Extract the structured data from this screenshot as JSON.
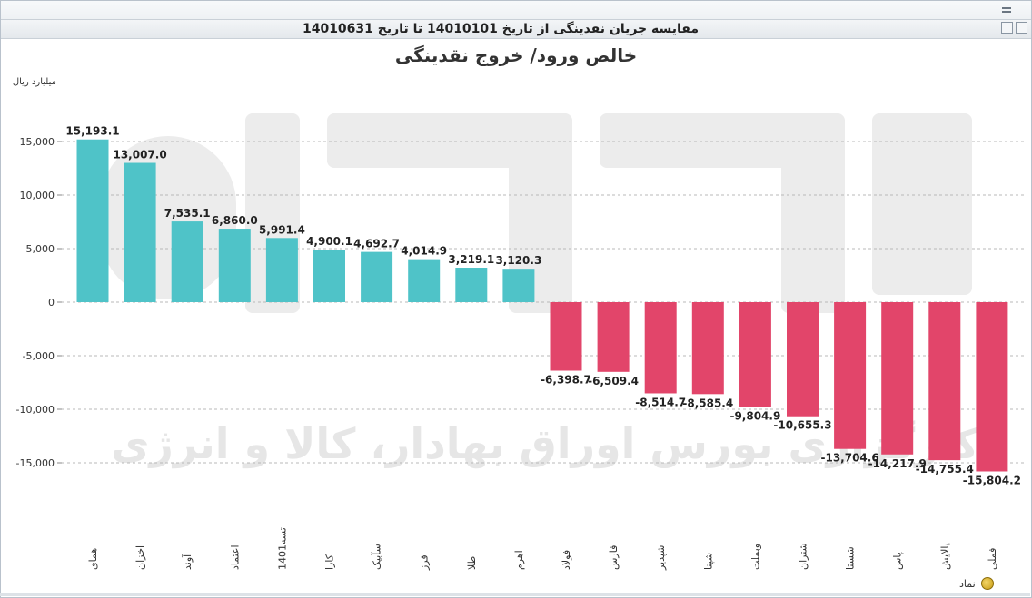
{
  "window": {
    "title": "مقایسه جریان نقدینگی از تاریخ 14010101 تا تاریخ 14010631"
  },
  "colors": {
    "positive": "#4fc3c8",
    "negative": "#e2456a",
    "grid": "#b8b8b8",
    "watermark": "#ececec"
  },
  "footer": {
    "label": "نماد",
    "icon": "refresh-icon"
  },
  "chart_data": {
    "type": "bar",
    "title": "خالص ورود/ خروج نقدینگی",
    "ylabel": "میلیارد ریال",
    "xlabel": "",
    "ylim": [
      -17500,
      17500
    ],
    "yticks": [
      15000,
      10000,
      5000,
      0,
      -5000,
      -10000,
      -15000
    ],
    "ytick_labels": [
      "15,000",
      "10,000",
      "5,000",
      "0",
      "-5,000",
      "-10,000",
      "-15,000"
    ],
    "grid": true,
    "categories": [
      "همای",
      "اخزان",
      "آوند",
      "اعتماد",
      "تسه1401",
      "کارا",
      "سآبیک",
      "فرز",
      "طلا",
      "اهرم",
      "فولاد",
      "فارس",
      "شپدیر",
      "شپنا",
      "وبملت",
      "شتران",
      "شستا",
      "پاس",
      "پالایش",
      "فملی"
    ],
    "values": [
      15193.1,
      13007.0,
      7535.1,
      6860.0,
      5991.4,
      4900.1,
      4692.7,
      4014.9,
      3219.1,
      3120.3,
      -6398.7,
      -6509.4,
      -8514.7,
      -8585.4,
      -9804.9,
      -10655.3,
      -13704.6,
      -14217.9,
      -14755.4,
      -15804.2
    ],
    "value_labels": [
      "15,193.1",
      "13,007.0",
      "7,535.1",
      "6,860.0",
      "5,991.4",
      "4,900.1",
      "4,692.7",
      "4,014.9",
      "3,219.1",
      "3,120.3",
      "-6,398.7",
      "-6,509.4",
      "-8,514.7",
      "-8,585.4",
      "-9,804.9",
      "-10,655.3",
      "-13,704.6",
      "-14,217.9",
      "-14,755.4",
      "-15,804.2"
    ],
    "watermark": "کارگزاری بورس اوراق بهادار، کالا و انرژی"
  }
}
